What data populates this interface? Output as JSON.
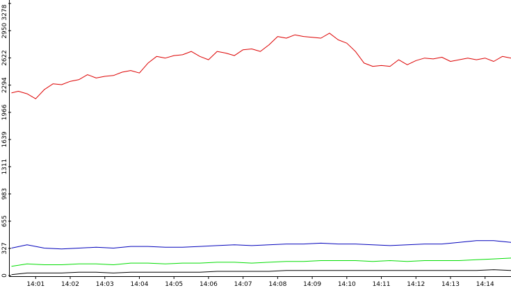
{
  "chart_data": {
    "type": "line",
    "title": "",
    "xlabel": "",
    "ylabel": "",
    "ylim": [
      0,
      3278
    ],
    "y_ticks": [
      0,
      327,
      655,
      983,
      1311,
      1639,
      1966,
      2294,
      2622,
      2950,
      3278
    ],
    "x_ticks": [
      "14:01",
      "14:02",
      "14:03",
      "14:04",
      "14:05",
      "14:06",
      "14:07",
      "14:08",
      "14:09",
      "14:10",
      "14:11",
      "14:12",
      "14:13",
      "14:14"
    ],
    "x_tick_minutes": [
      1,
      2,
      3,
      4,
      5,
      6,
      7,
      8,
      9,
      10,
      11,
      12,
      13,
      14
    ],
    "xlim_minutes": [
      0.25,
      14.75
    ],
    "grid": false,
    "legend": "none",
    "series": [
      {
        "color": "#dd0000",
        "x": [
          0.3,
          0.5,
          0.75,
          1.0,
          1.25,
          1.5,
          1.75,
          2.0,
          2.25,
          2.5,
          2.75,
          3.0,
          3.25,
          3.5,
          3.75,
          4.0,
          4.25,
          4.5,
          4.75,
          5.0,
          5.25,
          5.5,
          5.75,
          6.0,
          6.25,
          6.5,
          6.75,
          7.0,
          7.25,
          7.5,
          7.75,
          8.0,
          8.25,
          8.5,
          8.75,
          9.0,
          9.25,
          9.5,
          9.75,
          10.0,
          10.25,
          10.5,
          10.75,
          11.0,
          11.25,
          11.5,
          11.75,
          12.0,
          12.25,
          12.5,
          12.75,
          13.0,
          13.25,
          13.5,
          13.75,
          14.0,
          14.25,
          14.5,
          14.75
        ],
        "y": [
          2200,
          2220,
          2190,
          2130,
          2240,
          2310,
          2300,
          2340,
          2360,
          2420,
          2380,
          2400,
          2410,
          2450,
          2470,
          2440,
          2560,
          2640,
          2620,
          2650,
          2660,
          2700,
          2640,
          2600,
          2700,
          2680,
          2650,
          2720,
          2730,
          2700,
          2780,
          2880,
          2860,
          2900,
          2880,
          2870,
          2860,
          2920,
          2840,
          2800,
          2700,
          2560,
          2520,
          2530,
          2520,
          2600,
          2540,
          2590,
          2620,
          2610,
          2630,
          2580,
          2600,
          2620,
          2600,
          2620,
          2580,
          2640,
          2620
        ]
      },
      {
        "color": "#0000bb",
        "x": [
          0.3,
          0.75,
          1.25,
          1.75,
          2.25,
          2.75,
          3.25,
          3.75,
          4.25,
          4.75,
          5.25,
          5.75,
          6.25,
          6.75,
          7.25,
          7.75,
          8.25,
          8.75,
          9.25,
          9.75,
          10.25,
          10.75,
          11.25,
          11.75,
          12.25,
          12.75,
          13.25,
          13.75,
          14.25,
          14.75
        ],
        "y": [
          330,
          370,
          330,
          320,
          330,
          340,
          330,
          350,
          350,
          340,
          340,
          350,
          360,
          370,
          360,
          370,
          380,
          380,
          390,
          380,
          380,
          370,
          360,
          370,
          380,
          380,
          400,
          420,
          420,
          400
        ]
      },
      {
        "color": "#00dd00",
        "x": [
          0.3,
          0.75,
          1.25,
          1.75,
          2.25,
          2.75,
          3.25,
          3.75,
          4.25,
          4.75,
          5.25,
          5.75,
          6.25,
          6.75,
          7.25,
          7.75,
          8.25,
          8.75,
          9.25,
          9.75,
          10.25,
          10.75,
          11.25,
          11.75,
          12.25,
          12.75,
          13.25,
          13.75,
          14.25,
          14.75
        ],
        "y": [
          110,
          140,
          130,
          130,
          140,
          140,
          130,
          150,
          150,
          140,
          150,
          150,
          160,
          160,
          150,
          160,
          170,
          170,
          180,
          180,
          180,
          170,
          180,
          170,
          180,
          180,
          180,
          190,
          200,
          210
        ]
      },
      {
        "color": "#000000",
        "x": [
          0.3,
          0.75,
          1.25,
          1.75,
          2.25,
          2.75,
          3.25,
          3.75,
          4.25,
          4.75,
          5.25,
          5.75,
          6.25,
          6.75,
          7.25,
          7.75,
          8.25,
          8.75,
          9.25,
          9.75,
          10.25,
          10.75,
          11.25,
          11.75,
          12.25,
          12.75,
          13.25,
          13.75,
          14.25,
          14.75
        ],
        "y": [
          10,
          30,
          30,
          30,
          40,
          40,
          30,
          40,
          40,
          40,
          40,
          40,
          50,
          50,
          50,
          50,
          60,
          60,
          60,
          60,
          60,
          60,
          60,
          60,
          60,
          60,
          60,
          60,
          70,
          60
        ]
      }
    ]
  }
}
